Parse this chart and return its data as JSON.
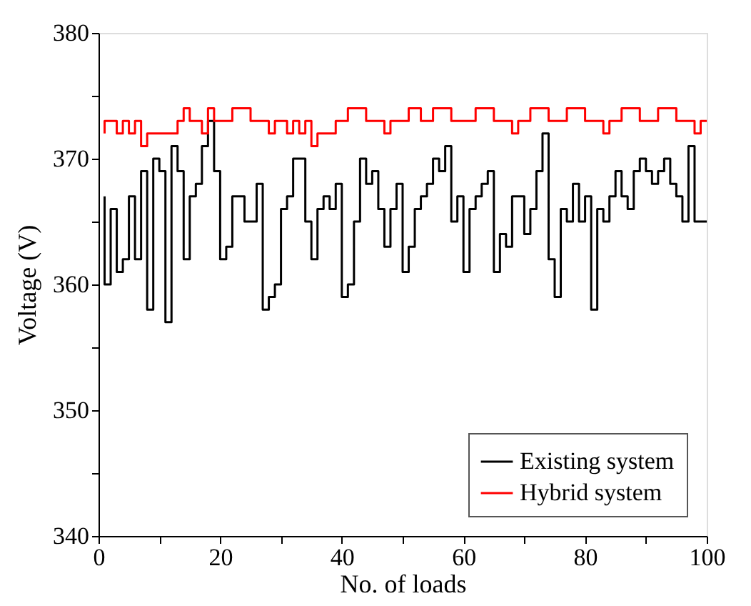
{
  "chart_data": {
    "type": "step",
    "xlabel": "No. of loads",
    "ylabel": "Voltage (V)",
    "x": [
      1,
      2,
      3,
      4,
      5,
      6,
      7,
      8,
      9,
      10,
      11,
      12,
      13,
      14,
      15,
      16,
      17,
      18,
      19,
      20,
      21,
      22,
      23,
      24,
      25,
      26,
      27,
      28,
      29,
      30,
      31,
      32,
      33,
      34,
      35,
      36,
      37,
      38,
      39,
      40,
      41,
      42,
      43,
      44,
      45,
      46,
      47,
      48,
      49,
      50,
      51,
      52,
      53,
      54,
      55,
      56,
      57,
      58,
      59,
      60,
      61,
      62,
      63,
      64,
      65,
      66,
      67,
      68,
      69,
      70,
      71,
      72,
      73,
      74,
      75,
      76,
      77,
      78,
      79,
      80,
      81,
      82,
      83,
      84,
      85,
      86,
      87,
      88,
      89,
      90,
      91,
      92,
      93,
      94,
      95,
      96,
      97,
      98,
      99,
      100
    ],
    "series": [
      {
        "name": "Existing system",
        "color": "#000000",
        "values": [
          367,
          360,
          366,
          361,
          362,
          367,
          362,
          369,
          358,
          370,
          369,
          357,
          371,
          369,
          362,
          367,
          368,
          371,
          373,
          369,
          362,
          363,
          367,
          367,
          365,
          365,
          368,
          358,
          359,
          360,
          366,
          367,
          370,
          370,
          365,
          362,
          366,
          367,
          366,
          368,
          359,
          360,
          365,
          370,
          368,
          369,
          366,
          363,
          366,
          368,
          361,
          363,
          366,
          367,
          368,
          370,
          369,
          371,
          365,
          367,
          361,
          366,
          367,
          368,
          369,
          361,
          364,
          363,
          367,
          367,
          364,
          366,
          369,
          372,
          362,
          359,
          366,
          365,
          368,
          365,
          367,
          358,
          366,
          365,
          367,
          369,
          367,
          366,
          369,
          370,
          369,
          368,
          369,
          370,
          368,
          367,
          365,
          371,
          365,
          365
        ]
      },
      {
        "name": "Hybrid system",
        "color": "#ff0000",
        "values": [
          372,
          373,
          373,
          372,
          373,
          372,
          373,
          371,
          372,
          372,
          372,
          372,
          372,
          373,
          374,
          373,
          373,
          372,
          374,
          373,
          373,
          373,
          374,
          374,
          374,
          373,
          373,
          373,
          372,
          373,
          373,
          372,
          373,
          372,
          373,
          371,
          372,
          372,
          372,
          373,
          373,
          374,
          374,
          374,
          373,
          373,
          373,
          372,
          373,
          373,
          373,
          374,
          374,
          373,
          373,
          374,
          374,
          374,
          373,
          373,
          373,
          373,
          374,
          374,
          374,
          373,
          373,
          373,
          372,
          373,
          373,
          374,
          374,
          374,
          373,
          373,
          373,
          374,
          374,
          374,
          373,
          373,
          373,
          372,
          373,
          373,
          374,
          374,
          374,
          373,
          373,
          373,
          374,
          374,
          374,
          373,
          373,
          373,
          372,
          373
        ]
      }
    ],
    "xlim": [
      0,
      100
    ],
    "xticks": [
      0,
      {
        "value": 10,
        "label": null
      },
      20,
      {
        "value": 30,
        "label": null
      },
      40,
      {
        "value": 50,
        "label": null
      },
      60,
      {
        "value": 70,
        "label": null
      },
      80,
      {
        "value": 90,
        "label": null
      },
      100
    ],
    "ylim": [
      340,
      380
    ],
    "yticks": [
      340,
      {
        "value": 345,
        "label": null
      },
      350,
      {
        "value": 355,
        "label": null
      },
      360,
      {
        "value": 365,
        "label": null
      },
      370,
      {
        "value": 375,
        "label": null
      },
      380
    ],
    "grid": false,
    "legend": "bottom right",
    "line_style": "solid",
    "marker": "none"
  }
}
